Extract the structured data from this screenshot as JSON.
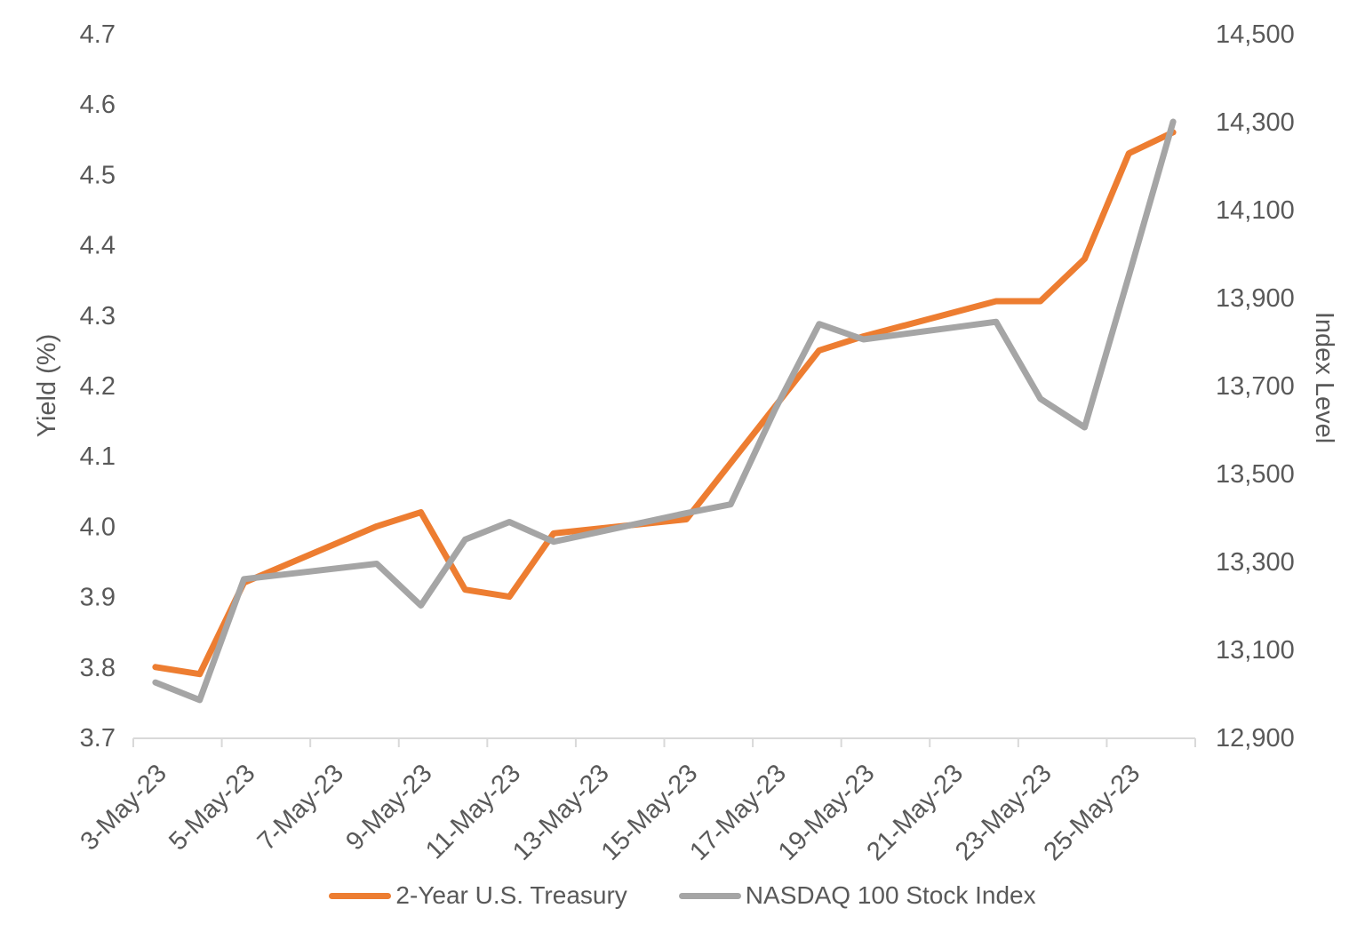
{
  "chart_data": {
    "type": "line",
    "title": "",
    "x": [
      "3-May-23",
      "4-May-23",
      "5-May-23",
      "8-May-23",
      "9-May-23",
      "10-May-23",
      "11-May-23",
      "12-May-23",
      "15-May-23",
      "16-May-23",
      "17-May-23",
      "18-May-23",
      "19-May-23",
      "22-May-23",
      "23-May-23",
      "24-May-23",
      "25-May-23",
      "26-May-23"
    ],
    "day_numbers": [
      3,
      4,
      5,
      8,
      9,
      10,
      11,
      12,
      15,
      16,
      17,
      18,
      19,
      22,
      23,
      24,
      25,
      26
    ],
    "day_domain": [
      3,
      27
    ],
    "x_tick_labels": [
      "3-May-23",
      "5-May-23",
      "7-May-23",
      "9-May-23",
      "11-May-23",
      "13-May-23",
      "15-May-23",
      "17-May-23",
      "19-May-23",
      "21-May-23",
      "23-May-23",
      "25-May-23"
    ],
    "series": [
      {
        "name": "2-Year U.S.  Treasury",
        "axis": "left",
        "color": "#ED7D31",
        "values": [
          3.8,
          3.79,
          3.92,
          4.0,
          4.02,
          3.91,
          3.9,
          3.99,
          4.01,
          4.09,
          4.17,
          4.25,
          4.27,
          4.32,
          4.32,
          4.38,
          4.53,
          4.56
        ]
      },
      {
        "name": "NASDAQ 100 Stock Index",
        "axis": "right",
        "color": "#A5A5A5",
        "values": [
          13025,
          12985,
          13260,
          13295,
          13200,
          13350,
          13390,
          13345,
          13410,
          13430,
          13645,
          13840,
          13805,
          13845,
          13670,
          13605,
          13950,
          14300
        ]
      }
    ],
    "left_axis": {
      "title": "Yield (%)",
      "min": 3.7,
      "max": 4.7,
      "step": 0.1,
      "tick_labels": [
        "3.7",
        "3.8",
        "3.9",
        "4.0",
        "4.1",
        "4.2",
        "4.3",
        "4.4",
        "4.5",
        "4.6",
        "4.7"
      ]
    },
    "right_axis": {
      "title": "Index Level",
      "min": 12900,
      "max": 14500,
      "step": 200,
      "tick_labels": [
        "12,900",
        "13,100",
        "13,300",
        "13,500",
        "13,700",
        "13,900",
        "14,100",
        "14,300",
        "14,500"
      ]
    },
    "grid": "off",
    "legend_position": "bottom",
    "colors": {
      "axis_line": "#D9D9D9",
      "tick_text": "#595959"
    }
  },
  "legend": {
    "items": [
      {
        "label": "2-Year U.S.  Treasury",
        "color": "#ED7D31"
      },
      {
        "label": "NASDAQ 100 Stock Index",
        "color": "#A5A5A5"
      }
    ]
  }
}
